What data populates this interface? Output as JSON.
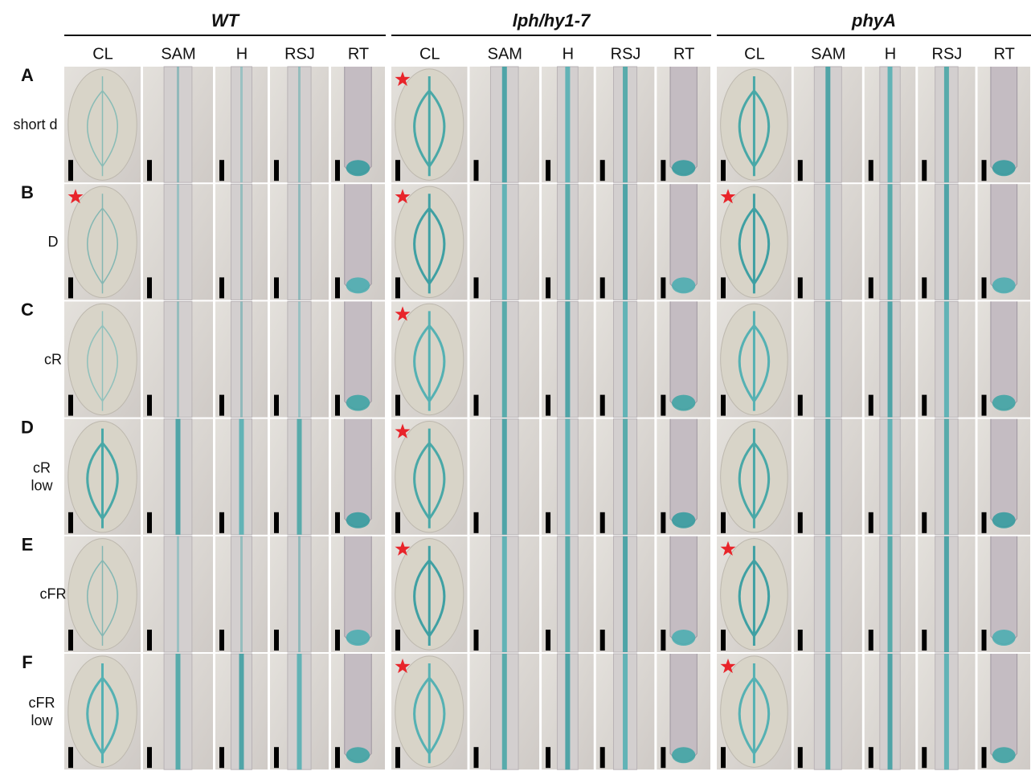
{
  "groups": [
    {
      "title": "WT",
      "columns": [
        "CL",
        "SAM",
        "H",
        "RSJ",
        "RT"
      ]
    },
    {
      "title": "lph/hy1-7",
      "columns": [
        "CL",
        "SAM",
        "H",
        "RSJ",
        "RT"
      ]
    },
    {
      "title": "phyA",
      "columns": [
        "CL",
        "SAM",
        "H",
        "RSJ",
        "RT"
      ]
    }
  ],
  "rows": [
    {
      "letter": "A",
      "label": [
        "short d"
      ]
    },
    {
      "letter": "B",
      "label": [
        "D"
      ]
    },
    {
      "letter": "C",
      "label": [
        "cR"
      ]
    },
    {
      "letter": "D",
      "label": [
        "cR",
        "low"
      ]
    },
    {
      "letter": "E",
      "label": [
        "cFR"
      ]
    },
    {
      "letter": "F",
      "label": [
        "cFR",
        "low"
      ]
    }
  ]
}
